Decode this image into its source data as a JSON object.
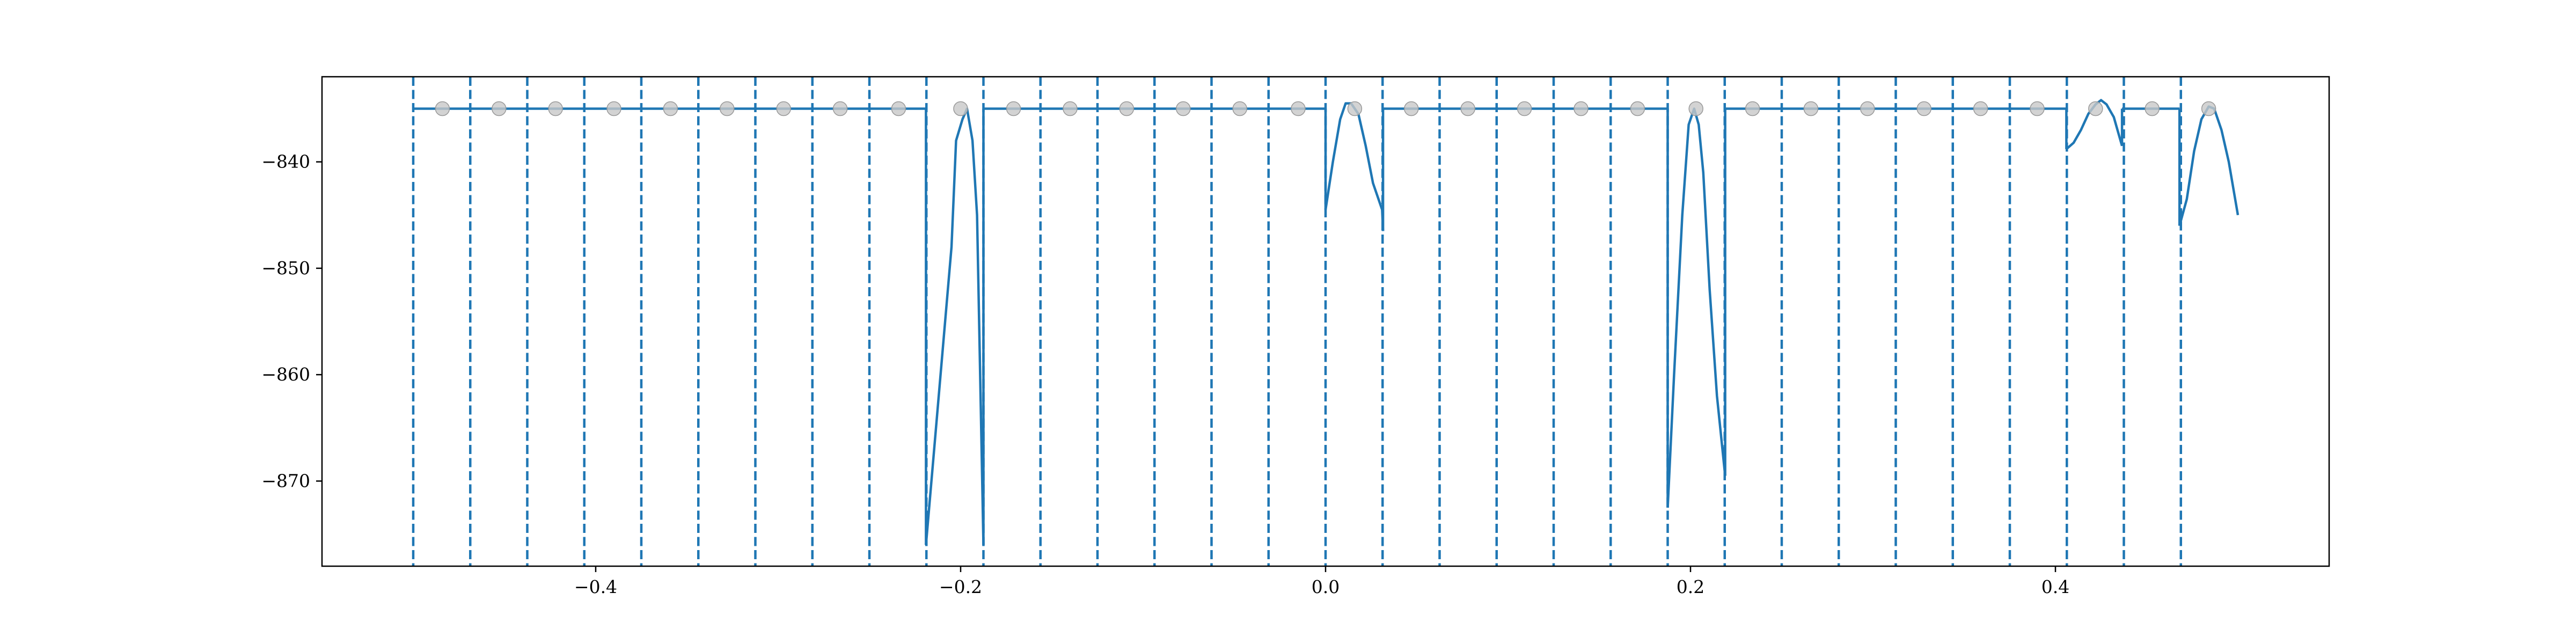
{
  "chart_data": {
    "type": "line",
    "title": "",
    "xlabel": "",
    "ylabel": "",
    "xlim": [
      -0.55,
      0.55
    ],
    "ylim": [
      -878,
      -832
    ],
    "grid": false,
    "legend": "none",
    "x_ticks": [
      -0.4,
      -0.2,
      0.0,
      0.2,
      0.4
    ],
    "x_tick_labels": [
      "−0.4",
      "−0.2",
      "0.0",
      "0.2",
      "0.4"
    ],
    "y_ticks": [
      -840,
      -850,
      -860,
      -870
    ],
    "y_tick_labels": [
      "−840",
      "−850",
      "−860",
      "−870"
    ],
    "line_color": "#1f77b4",
    "marker_color": "#c8c8c8",
    "vlines_x": [
      -0.5,
      -0.46875,
      -0.4375,
      -0.40625,
      -0.375,
      -0.34375,
      -0.3125,
      -0.28125,
      -0.25,
      -0.21875,
      -0.1875,
      -0.15625,
      -0.125,
      -0.09375,
      -0.0625,
      -0.03125,
      0.0,
      0.03125,
      0.0625,
      0.09375,
      0.125,
      0.15625,
      0.1875,
      0.21875,
      0.25,
      0.28125,
      0.3125,
      0.34375,
      0.375,
      0.40625,
      0.4375,
      0.46875
    ],
    "markers": {
      "x": [
        -0.484,
        -0.453,
        -0.422,
        -0.39,
        -0.359,
        -0.328,
        -0.297,
        -0.266,
        -0.234,
        -0.2,
        -0.171,
        -0.14,
        -0.109,
        -0.078,
        -0.047,
        -0.015,
        0.016,
        0.047,
        0.078,
        0.109,
        0.14,
        0.171,
        0.203,
        0.234,
        0.266,
        0.297,
        0.328,
        0.359,
        0.39,
        0.422,
        0.453,
        0.484
      ],
      "y": [
        -835,
        -835,
        -835,
        -835,
        -835,
        -835,
        -835,
        -835,
        -835,
        -835,
        -835,
        -835,
        -835,
        -835,
        -835,
        -835,
        -835,
        -835,
        -835,
        -835,
        -835,
        -835,
        -835,
        -835,
        -835,
        -835,
        -835,
        -835,
        -835,
        -835,
        -835,
        -835
      ]
    },
    "series": [
      {
        "segments": [
          [
            [
              -0.5,
              -835
            ],
            [
              -0.219,
              -835
            ]
          ],
          [
            [
              -0.219,
              -876
            ],
            [
              -0.21,
              -858
            ],
            [
              -0.205,
              -848
            ],
            [
              -0.2025,
              -838
            ],
            [
              -0.199,
              -836
            ],
            [
              -0.1965,
              -835
            ],
            [
              -0.1935,
              -838
            ],
            [
              -0.191,
              -845
            ],
            [
              -0.1875,
              -876
            ]
          ],
          [
            [
              -0.1875,
              -835
            ],
            [
              0.0,
              -835
            ]
          ],
          [
            [
              0.0,
              -844.5
            ],
            [
              0.004,
              -840
            ],
            [
              0.008,
              -836
            ],
            [
              0.011,
              -834.5
            ],
            [
              0.014,
              -834.5
            ],
            [
              0.018,
              -835.5
            ],
            [
              0.022,
              -838.5
            ],
            [
              0.026,
              -842
            ],
            [
              0.031,
              -844.5
            ],
            [
              0.0315,
              -846.5
            ]
          ],
          [
            [
              0.0315,
              -835
            ],
            [
              0.1875,
              -835
            ]
          ],
          [
            [
              0.1875,
              -872.5
            ],
            [
              0.191,
              -860
            ],
            [
              0.1955,
              -845
            ],
            [
              0.199,
              -836.5
            ],
            [
              0.202,
              -835
            ],
            [
              0.2045,
              -836.5
            ],
            [
              0.207,
              -841
            ],
            [
              0.2105,
              -852
            ],
            [
              0.2145,
              -862
            ],
            [
              0.219,
              -869.5
            ]
          ],
          [
            [
              0.219,
              -835
            ],
            [
              0.406,
              -835
            ]
          ],
          [
            [
              0.406,
              -838.8
            ],
            [
              0.41,
              -838.2
            ],
            [
              0.414,
              -837
            ],
            [
              0.418,
              -835.5
            ],
            [
              0.422,
              -834.6
            ],
            [
              0.425,
              -834.2
            ],
            [
              0.428,
              -834.6
            ],
            [
              0.432,
              -835.8
            ],
            [
              0.4365,
              -838.5
            ]
          ],
          [
            [
              0.4365,
              -835
            ],
            [
              0.468,
              -835
            ]
          ],
          [
            [
              0.468,
              -846
            ],
            [
              0.472,
              -843.5
            ],
            [
              0.476,
              -839
            ],
            [
              0.48,
              -836
            ],
            [
              0.484,
              -834.8
            ],
            [
              0.487,
              -835
            ],
            [
              0.491,
              -837
            ],
            [
              0.495,
              -840
            ],
            [
              0.5,
              -845
            ]
          ]
        ]
      }
    ]
  }
}
